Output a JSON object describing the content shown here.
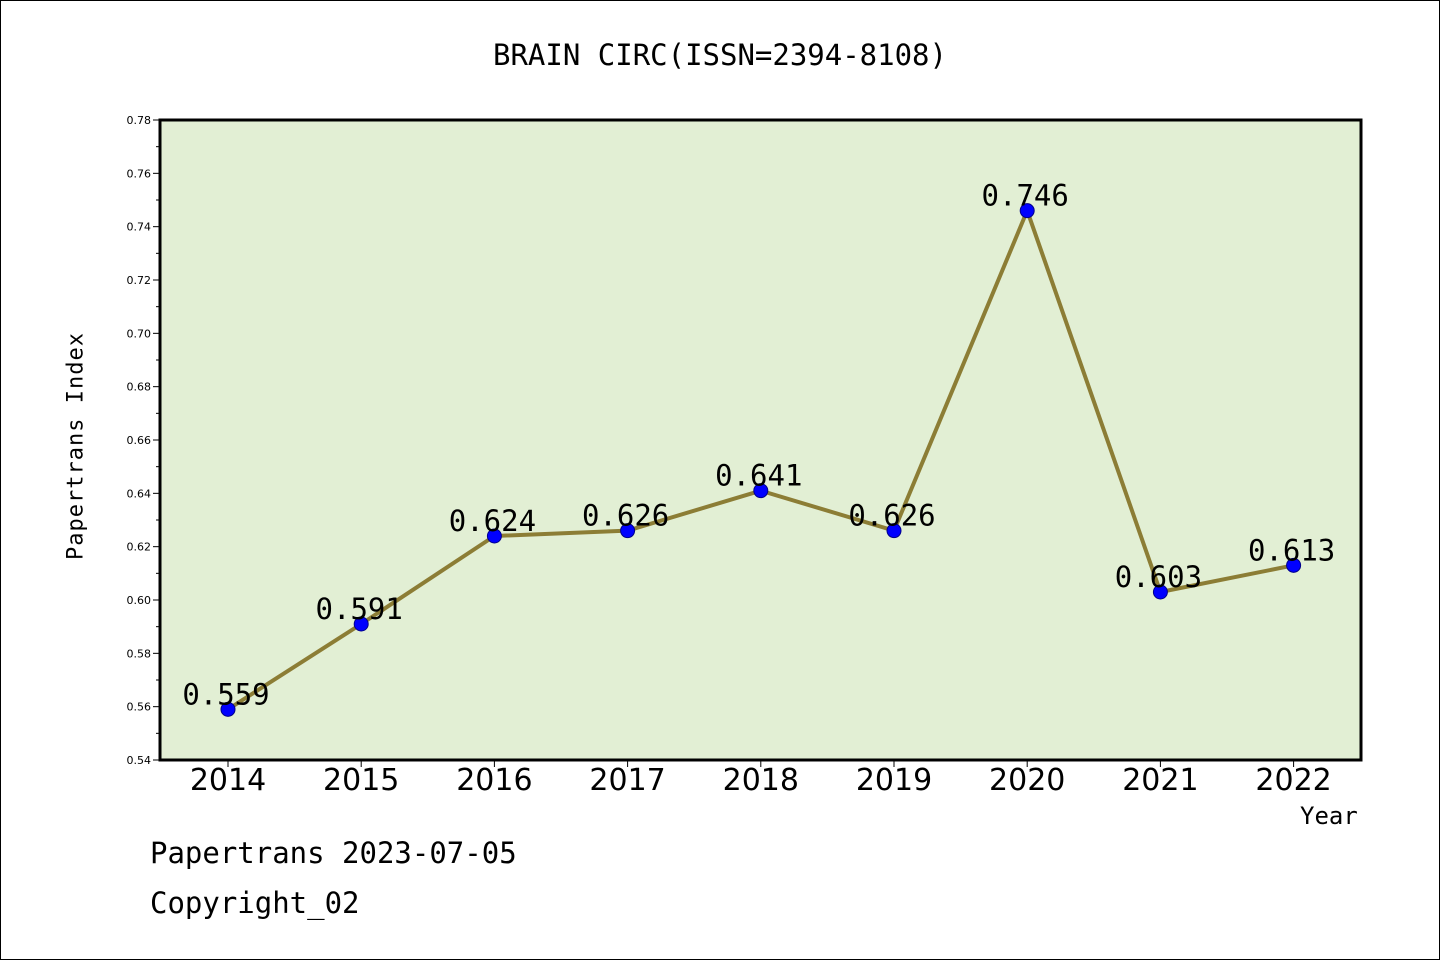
{
  "chart_data": {
    "type": "line",
    "title": "BRAIN CIRC(ISSN=2394-8108)",
    "xlabel": "Year",
    "ylabel": "Papertrans Index",
    "x": [
      "2014",
      "2015",
      "2016",
      "2017",
      "2018",
      "2019",
      "2020",
      "2021",
      "2022"
    ],
    "series": [
      {
        "values": [
          0.559,
          0.591,
          0.624,
          0.626,
          0.641,
          0.626,
          0.746,
          0.603,
          0.613
        ],
        "labels": [
          "0.559",
          "0.591",
          "0.624",
          "0.626",
          "0.641",
          "0.626",
          "0.746",
          "0.603",
          "0.613"
        ]
      }
    ],
    "ylim": [
      0.54,
      0.78
    ],
    "yticks": [
      "0.54",
      "0.56",
      "0.58",
      "0.60",
      "0.62",
      "0.64",
      "0.66",
      "0.68",
      "0.70",
      "0.72",
      "0.74",
      "0.76",
      "0.78"
    ],
    "grid": false,
    "colors": {
      "plot_background": "#e2efd4",
      "line": "#8c7d35",
      "marker_fill": "#0000ff",
      "marker_edge": "#00008b",
      "axes": "#000000"
    }
  },
  "footer": {
    "date_line": "Papertrans 2023-07-05",
    "copyright_line": "Copyright_02"
  }
}
